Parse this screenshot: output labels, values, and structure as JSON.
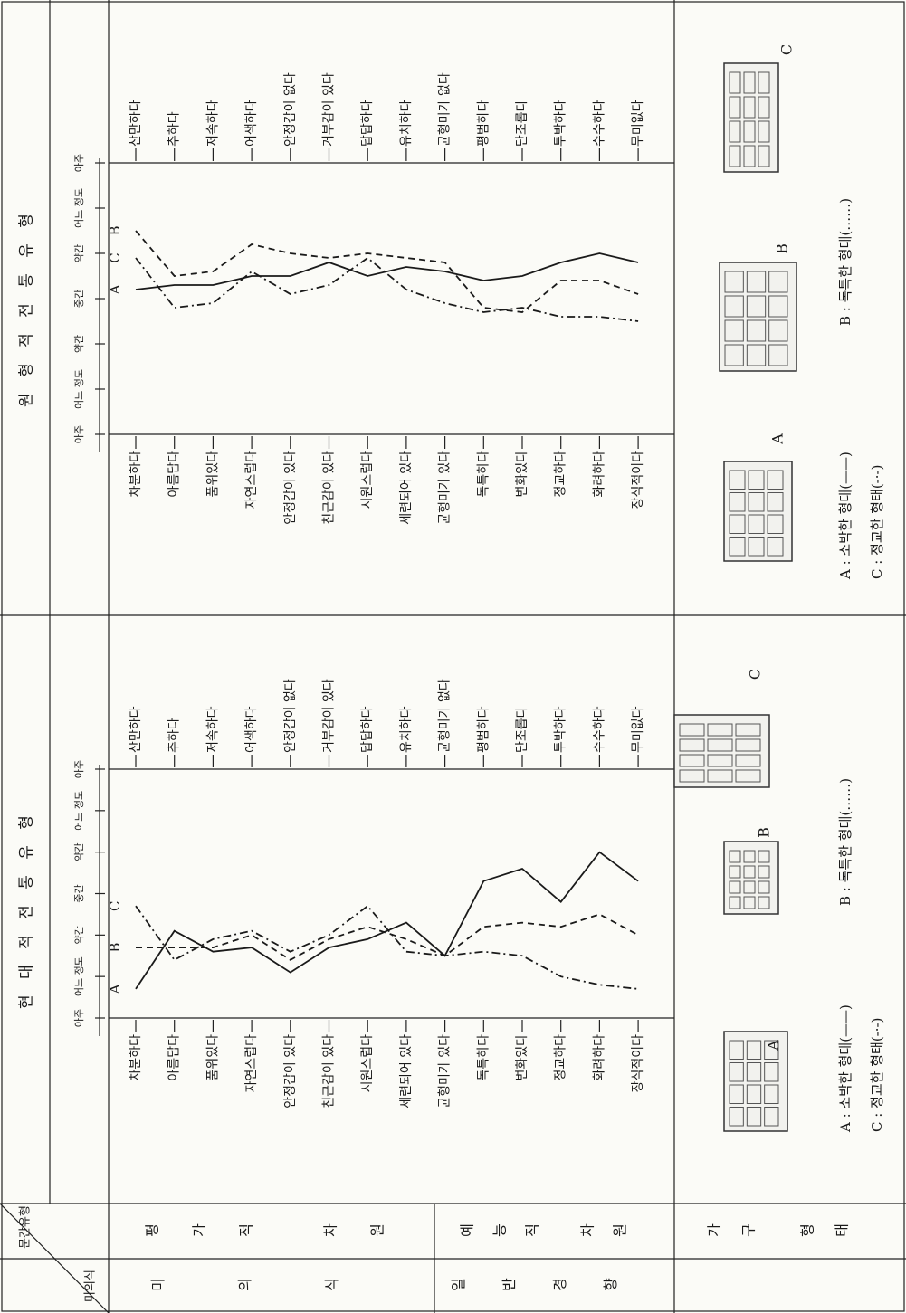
{
  "table": {
    "corner_top": "문간유형",
    "corner_bottom": "미의식",
    "groups": [
      "미의식",
      "일반경향"
    ],
    "subgroups": [
      "평가적 차원",
      "예능적 차원",
      "가구 형태"
    ]
  },
  "chart_data": [
    {
      "type": "line",
      "title": "현 대 적 전 통 유 형",
      "ylim": [
        1,
        7
      ],
      "yticks": [
        {
          "value": 1,
          "label": "아주"
        },
        {
          "value": 2,
          "label": "어느 정도"
        },
        {
          "value": 3,
          "label": "약간"
        },
        {
          "value": 4,
          "label": "중간"
        },
        {
          "value": 5,
          "label": "약간"
        },
        {
          "value": 6,
          "label": "어느 정도"
        },
        {
          "value": 7,
          "label": "아주"
        }
      ],
      "categories": [
        "차분하다",
        "아름답다",
        "품위있다",
        "자연스럽다",
        "안정감이 있다",
        "친근감이 있다",
        "시원스럽다",
        "세련되어 있다",
        "균형미가 있다",
        "독특하다",
        "변화있다",
        "정교하다",
        "화려하다",
        "장식적이다"
      ],
      "right_labels": [
        "산만하다",
        "추하다",
        "저속하다",
        "어색하다",
        "안정감이 없다",
        "거부감이 있다",
        "답답하다",
        "유치하다",
        "균형미가 없다",
        "평범하다",
        "단조롭다",
        "투박하다",
        "수수하다",
        "무미없다"
      ],
      "series": [
        {
          "name": "A",
          "label": "A : 소박한 형태(——)",
          "dash": "solid",
          "color": "#1a1a1a",
          "values": [
            1.7,
            3.1,
            2.6,
            2.7,
            2.1,
            2.7,
            2.9,
            3.3,
            2.5,
            4.3,
            4.6,
            3.8,
            5.0,
            4.3
          ]
        },
        {
          "name": "B",
          "label": "B : 독특한 형태(……)",
          "dash": "dashed",
          "color": "#1a1a1a",
          "values": [
            2.7,
            2.7,
            2.7,
            3.0,
            2.4,
            2.9,
            3.2,
            2.9,
            2.5,
            3.2,
            3.3,
            3.2,
            3.5,
            3.0
          ]
        },
        {
          "name": "C",
          "label": "C : 정교한 형태(-·-)",
          "dash": "dashdot",
          "color": "#1a1a1a",
          "values": [
            3.7,
            2.4,
            2.9,
            3.1,
            2.6,
            3.0,
            3.7,
            2.6,
            2.5,
            2.6,
            2.5,
            2.0,
            1.8,
            1.7
          ]
        }
      ]
    },
    {
      "type": "line",
      "title": "원 형 적 전 통 유 형",
      "ylim": [
        1,
        7
      ],
      "yticks": [
        {
          "value": 1,
          "label": "아주"
        },
        {
          "value": 2,
          "label": "어느 정도"
        },
        {
          "value": 3,
          "label": "약간"
        },
        {
          "value": 4,
          "label": "중간"
        },
        {
          "value": 5,
          "label": "약간"
        },
        {
          "value": 6,
          "label": "어느 정도"
        },
        {
          "value": 7,
          "label": "아주"
        }
      ],
      "categories": [
        "차분하다",
        "아름답다",
        "품위있다",
        "자연스럽다",
        "안정감이 있다",
        "친근감이 있다",
        "시원스럽다",
        "세련되어 있다",
        "균형미가 있다",
        "독특하다",
        "변화있다",
        "정교하다",
        "화려하다",
        "장식적이다"
      ],
      "right_labels": [
        "산만하다",
        "추하다",
        "저속하다",
        "어색하다",
        "안정감이 없다",
        "거부감이 있다",
        "답답하다",
        "유치하다",
        "균형미가 없다",
        "평범하다",
        "단조롭다",
        "투박하다",
        "수수하다",
        "무미없다"
      ],
      "series": [
        {
          "name": "A",
          "label": "A : 소박한 형태(——)",
          "dash": "solid",
          "color": "#1a1a1a",
          "values": [
            4.2,
            4.3,
            4.3,
            4.5,
            4.5,
            4.8,
            4.5,
            4.7,
            4.6,
            4.4,
            4.5,
            4.8,
            5.0,
            4.8
          ]
        },
        {
          "name": "B",
          "label": "B : 독특한 형태(……)",
          "dash": "dashed",
          "color": "#1a1a1a",
          "values": [
            5.5,
            4.5,
            4.6,
            5.2,
            5.0,
            4.9,
            5.0,
            4.9,
            4.8,
            3.8,
            3.7,
            4.4,
            4.4,
            4.1
          ]
        },
        {
          "name": "C",
          "label": "C : 정교한 형태(-·-)",
          "dash": "dashdot",
          "color": "#1a1a1a",
          "values": [
            4.9,
            3.8,
            3.9,
            4.6,
            4.1,
            4.3,
            4.9,
            4.2,
            3.9,
            3.7,
            3.8,
            3.6,
            3.6,
            3.5
          ]
        }
      ]
    }
  ]
}
